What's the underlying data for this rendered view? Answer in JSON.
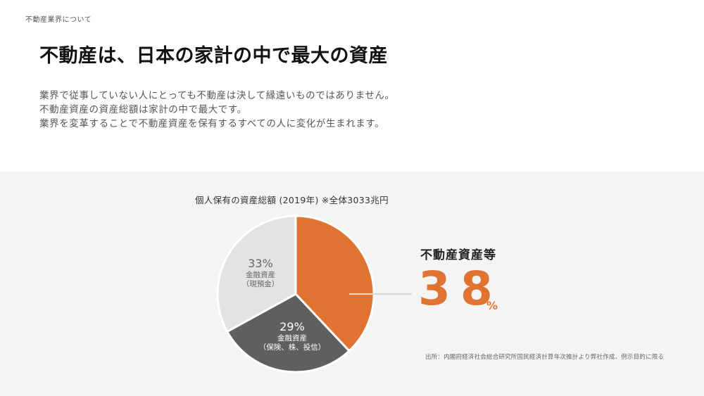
{
  "header": {
    "section_label": "不動産業界について",
    "title": "不動産は、日本の家計の中で最大の資産"
  },
  "lead": {
    "lines": [
      "業界で従事していない人にとっても不動産は決して縁遠いものではありません。",
      "不動産資産の資産総額は家計の中で最大です。",
      "業界を変革することで不動産資産を保有するすべての人に変化が生まれます。"
    ]
  },
  "colors": {
    "accent": "#e07331",
    "dark_slice": "#5f5f5f",
    "light_slice": "#e3e3e3",
    "panel_bg": "#f4f4f4"
  },
  "chart": {
    "title": "個人保有の資産総額 (2019年) ※全体3033兆円",
    "slices": [
      {
        "pct_label": "38%",
        "desc_1": "不動産資産等",
        "desc_2": ""
      },
      {
        "pct_label": "29%",
        "desc_1": "金融資産",
        "desc_2": "（保険、株、投信）"
      },
      {
        "pct_label": "33%",
        "desc_1": "金融資産",
        "desc_2": "（現預金）"
      }
    ],
    "highlight": {
      "label": "不動産資産等",
      "value": "38",
      "unit": "%"
    },
    "source": "出所：内閣府経済社会総合研究所国民経済計算年次推計より弊社作成、例示目的に限る"
  },
  "chart_data": {
    "type": "pie",
    "title": "個人保有の資産総額 (2019年) ※全体3033兆円",
    "categories": [
      "不動産資産等",
      "金融資産（保険、株、投信）",
      "金融資産（現預金）"
    ],
    "values": [
      38,
      29,
      33
    ],
    "unit": "%",
    "total": "3033兆円",
    "colors": [
      "#e07331",
      "#5f5f5f",
      "#e3e3e3"
    ],
    "start_angle": "12 o'clock, clockwise",
    "annotations": [
      "不動産資産等 38%"
    ],
    "source": "出所：内閣府経済社会総合研究所国民経済計算年次推計より弊社作成、例示目的に限る",
    "legend": "none (direct labels)"
  }
}
